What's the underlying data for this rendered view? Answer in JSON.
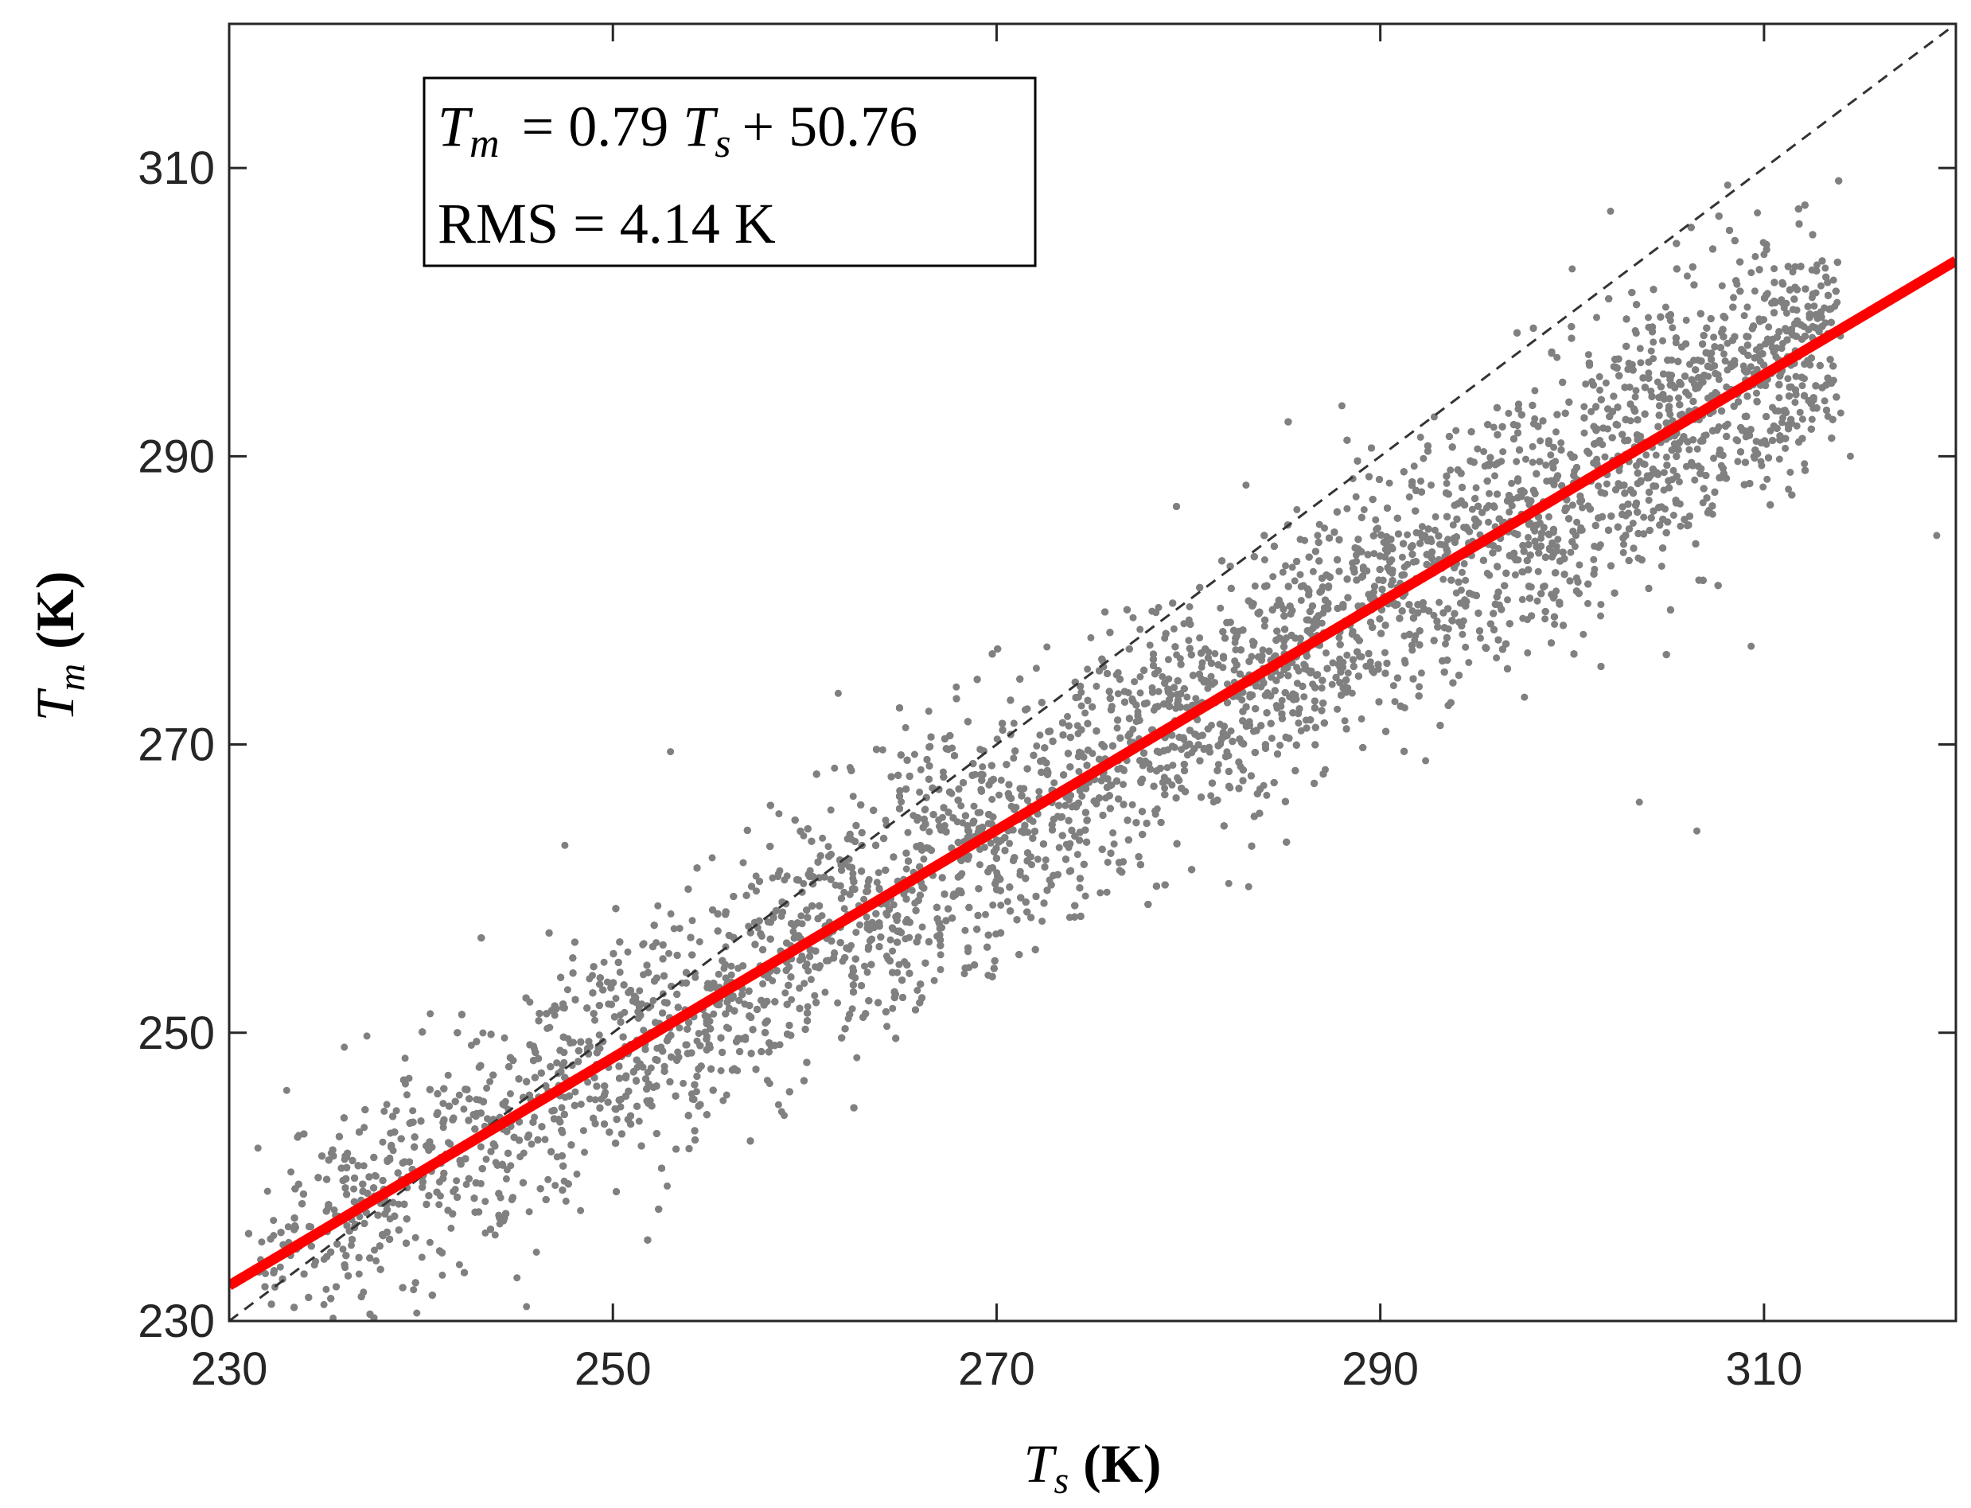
{
  "chart_data": {
    "type": "scatter",
    "x_ticks": [
      "230",
      "250",
      "270",
      "290",
      "310"
    ],
    "y_ticks": [
      "230",
      "250",
      "270",
      "290",
      "310"
    ],
    "xlim": [
      230,
      320
    ],
    "ylim": [
      230,
      320
    ],
    "xlabel": {
      "symbol": "T",
      "subscript": "s",
      "unit": "(K)"
    },
    "ylabel": {
      "symbol": "T",
      "subscript": "m",
      "unit": "(K)"
    },
    "annotation": {
      "equation_lhs": "T",
      "equation_lhs_subscript": "m",
      "equation_mid": "= 0.79",
      "equation_var": "T",
      "equation_var_subscript": "s",
      "equation_rhs": "+ 50.76",
      "rms_text": "RMS = 4.14 K",
      "position": "top-left"
    },
    "fit_line": {
      "slope": 0.79,
      "intercept": 50.76,
      "color": "#ff0000"
    },
    "reference_line": {
      "slope": 1,
      "intercept": 0,
      "style": "dashed",
      "color": "#333333"
    },
    "scatter": {
      "color": "#808080",
      "description_of_cloud": {
        "x_range": [
          231,
          314
        ],
        "center_slope": 0.79,
        "center_intercept": 50.76,
        "spread_sd": 4.14
      },
      "outliers": [
        {
          "x": 231.5,
          "y": 242
        },
        {
          "x": 232.0,
          "y": 239
        },
        {
          "x": 233.0,
          "y": 246
        },
        {
          "x": 236.0,
          "y": 249
        },
        {
          "x": 237.0,
          "y": 232
        },
        {
          "x": 245.5,
          "y": 231
        },
        {
          "x": 245.0,
          "y": 233
        },
        {
          "x": 247.5,
          "y": 263
        },
        {
          "x": 253.0,
          "y": 269.5
        },
        {
          "x": 302.0,
          "y": 307
        },
        {
          "x": 300.0,
          "y": 303
        },
        {
          "x": 306.0,
          "y": 302.5
        },
        {
          "x": 310.0,
          "y": 304
        },
        {
          "x": 314.0,
          "y": 293
        },
        {
          "x": 314.5,
          "y": 290
        },
        {
          "x": 319.0,
          "y": 284.5
        },
        {
          "x": 288.0,
          "y": 293.5
        },
        {
          "x": 283.0,
          "y": 288
        },
        {
          "x": 306.5,
          "y": 264
        },
        {
          "x": 303.5,
          "y": 266
        }
      ]
    },
    "grid": false
  }
}
